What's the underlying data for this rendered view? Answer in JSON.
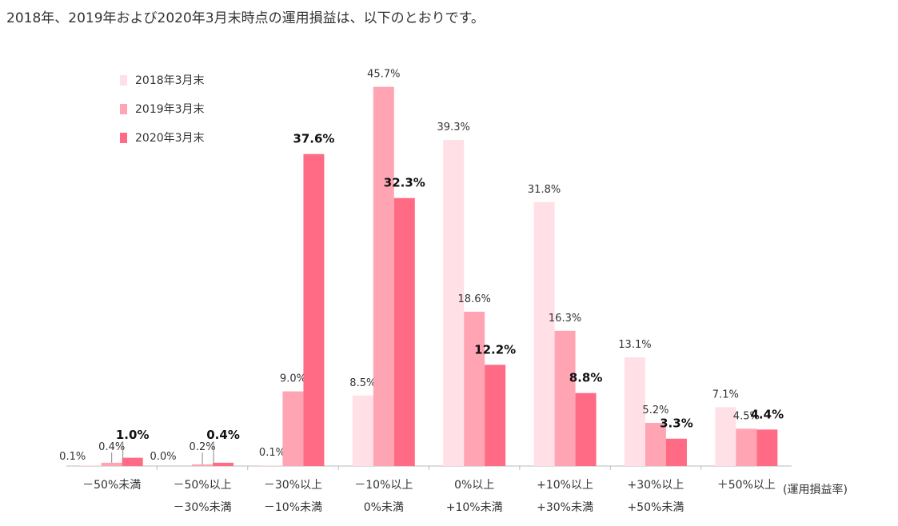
{
  "page": {
    "heading": "2018年、2019年および2020年3月末時点の運用損益は、以下のとおりです。"
  },
  "colors": {
    "series": [
      "#FFE0E6",
      "#FFA4B3",
      "#FF6B84"
    ],
    "axis": "#bbbbbb",
    "leader": "#888888"
  },
  "chart_data": {
    "type": "bar",
    "title": "",
    "xlabel": "(運用損益率)",
    "ylabel": "",
    "ylim": [
      0,
      50
    ],
    "grid": false,
    "legend_position": "top-left",
    "categories": [
      [
        "－50%未満"
      ],
      [
        "－50%以上",
        "－30%未満"
      ],
      [
        "－30%以上",
        "－10%未満"
      ],
      [
        "－10%以上",
        "0%未満"
      ],
      [
        "0%以上",
        "+10%未満"
      ],
      [
        "+10%以上",
        "+30%未満"
      ],
      [
        "+30%以上",
        "+50%未満"
      ],
      [
        "＋50%以上"
      ]
    ],
    "series": [
      {
        "name": "2018年3月末",
        "values": [
          0.1,
          0.0,
          0.1,
          8.5,
          39.3,
          31.8,
          13.1,
          7.1
        ]
      },
      {
        "name": "2019年3月末",
        "values": [
          0.4,
          0.2,
          9.0,
          45.7,
          18.6,
          16.3,
          5.2,
          4.5
        ]
      },
      {
        "name": "2020年3月末",
        "values": [
          1.0,
          0.4,
          37.6,
          32.3,
          12.2,
          8.8,
          3.3,
          4.4
        ]
      }
    ],
    "emphasized_series": 2,
    "value_suffix": "%"
  }
}
